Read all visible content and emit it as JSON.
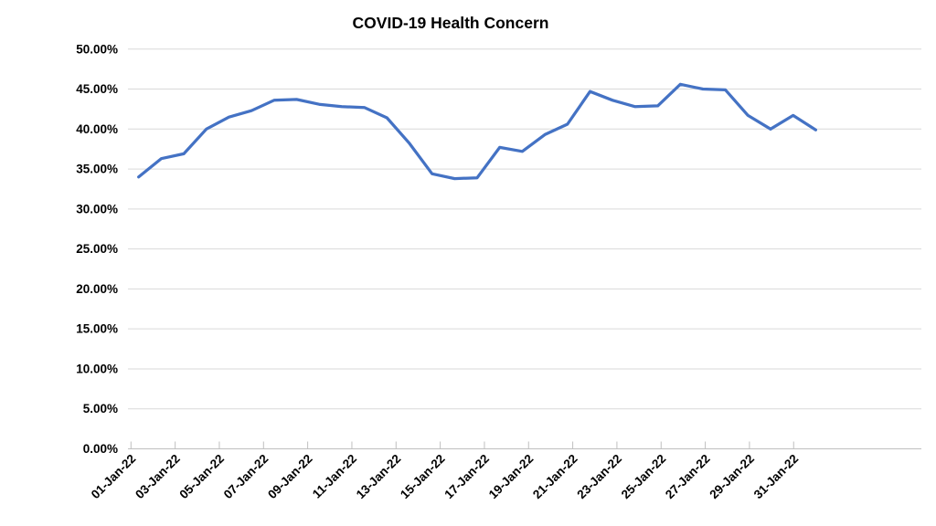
{
  "chart_data": {
    "type": "line",
    "title": "COVID-19 Health Concern",
    "x": [
      "01-Jan-22",
      "02-Jan-22",
      "03-Jan-22",
      "04-Jan-22",
      "05-Jan-22",
      "06-Jan-22",
      "07-Jan-22",
      "08-Jan-22",
      "09-Jan-22",
      "10-Jan-22",
      "11-Jan-22",
      "12-Jan-22",
      "13-Jan-22",
      "14-Jan-22",
      "15-Jan-22",
      "16-Jan-22",
      "17-Jan-22",
      "18-Jan-22",
      "19-Jan-22",
      "20-Jan-22",
      "21-Jan-22",
      "22-Jan-22",
      "23-Jan-22",
      "24-Jan-22",
      "25-Jan-22",
      "26-Jan-22",
      "27-Jan-22",
      "28-Jan-22",
      "29-Jan-22",
      "30-Jan-22",
      "31-Jan-22"
    ],
    "values": [
      34.0,
      36.3,
      36.9,
      40.0,
      41.5,
      42.3,
      43.6,
      43.7,
      43.1,
      42.8,
      42.7,
      41.4,
      38.2,
      34.4,
      33.8,
      33.9,
      37.7,
      37.2,
      39.3,
      40.6,
      44.7,
      43.6,
      42.8,
      42.9,
      45.6,
      45.0,
      44.9,
      41.7,
      40.0,
      41.7,
      39.9
    ],
    "x_tick_labels": [
      "01-Jan-22",
      "03-Jan-22",
      "05-Jan-22",
      "07-Jan-22",
      "09-Jan-22",
      "11-Jan-22",
      "13-Jan-22",
      "15-Jan-22",
      "17-Jan-22",
      "19-Jan-22",
      "21-Jan-22",
      "23-Jan-22",
      "25-Jan-22",
      "27-Jan-22",
      "29-Jan-22",
      "31-Jan-22"
    ],
    "y_tick_labels": [
      "0.00%",
      "5.00%",
      "10.00%",
      "15.00%",
      "20.00%",
      "25.00%",
      "30.00%",
      "35.00%",
      "40.00%",
      "45.00%",
      "50.00%"
    ],
    "ylim": [
      0,
      50
    ],
    "xlabel": "",
    "ylabel": "",
    "legend": "none",
    "grid": "horizontal",
    "colors": {
      "line": "#4472C4",
      "gridline": "#D9D9D9",
      "axis": "#BFBFBF",
      "text": "#000000",
      "background": "#FFFFFF"
    }
  }
}
